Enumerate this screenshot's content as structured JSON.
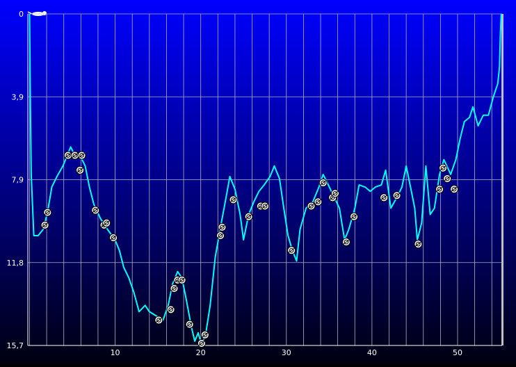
{
  "chart_data": {
    "type": "line",
    "y_inverted": true,
    "grid": true,
    "color": "#00ffff",
    "xlim": [
      -0.2,
      55.2
    ],
    "ylim": [
      0,
      15.7
    ],
    "xticks": [
      10,
      20,
      30,
      40,
      50
    ],
    "xgrid": [
      0,
      2,
      4,
      6,
      8,
      10,
      12,
      14,
      16,
      18,
      20,
      22,
      24,
      26,
      28,
      30,
      32,
      34,
      36,
      38,
      40,
      42,
      44,
      46,
      48,
      50,
      52,
      54
    ],
    "yticks": [
      0,
      {
        "value": 3.925,
        "label": "3,9"
      },
      {
        "value": 7.85,
        "label": "7,9"
      },
      {
        "value": 11.775,
        "label": "11,8"
      },
      {
        "value": 15.7,
        "label": "15,7"
      }
    ],
    "x": [
      0,
      0.1,
      0.2,
      0.5,
      1.0,
      1.6,
      2.1,
      2.6,
      3.2,
      3.9,
      4.5,
      4.8,
      5.3,
      5.9,
      6.5,
      7.0,
      7.5,
      8.3,
      9.1,
      10.0,
      10.5,
      11.0,
      11.6,
      12.2,
      12.8,
      13.5,
      14.0,
      14.8,
      15.6,
      16.2,
      16.7,
      17.3,
      17.8,
      18.3,
      18.9,
      19.3,
      19.7,
      20.1,
      20.6,
      21.1,
      21.7,
      22.4,
      23.0,
      23.4,
      24.0,
      24.6,
      25.0,
      25.6,
      26.2,
      26.8,
      27.4,
      28.1,
      28.6,
      29.2,
      29.7,
      30.2,
      30.7,
      31.2,
      31.6,
      32.3,
      33.1,
      33.8,
      34.3,
      34.9,
      35.5,
      36.2,
      36.8,
      37.3,
      38.0,
      38.5,
      39.2,
      39.8,
      40.4,
      41.1,
      41.6,
      42.2,
      42.9,
      43.5,
      44.0,
      44.5,
      45.0,
      45.3,
      45.8,
      46.3,
      46.8,
      47.3,
      47.9,
      48.4,
      49.2,
      49.8,
      50.3,
      50.8,
      51.4,
      51.8,
      52.4,
      53.0,
      53.6,
      54.2,
      54.7,
      54.9,
      55.0,
      55.1
    ],
    "values": [
      0,
      4.3,
      7.6,
      10.5,
      10.5,
      10.2,
      9.4,
      8.2,
      7.7,
      7.2,
      6.6,
      6.3,
      6.7,
      6.7,
      7.2,
      8.2,
      9.0,
      9.7,
      10.2,
      10.7,
      11.2,
      12.0,
      12.5,
      13.2,
      14.1,
      13.8,
      14.1,
      14.3,
      14.5,
      13.8,
      12.8,
      12.2,
      12.5,
      13.5,
      14.8,
      15.5,
      15.1,
      15.7,
      15.1,
      13.8,
      11.5,
      9.9,
      8.6,
      7.7,
      8.3,
      9.5,
      10.7,
      9.5,
      8.9,
      8.4,
      8.1,
      7.7,
      7.2,
      7.8,
      9.2,
      10.5,
      11.2,
      11.7,
      10.2,
      9.2,
      8.9,
      8.2,
      7.6,
      8.1,
      8.6,
      9.2,
      10.7,
      10.2,
      9.2,
      8.1,
      8.2,
      8.4,
      8.2,
      8.1,
      7.4,
      9.2,
      8.7,
      8.2,
      7.2,
      8.2,
      9.2,
      10.7,
      9.9,
      7.2,
      9.5,
      9.2,
      7.6,
      6.9,
      7.6,
      6.9,
      5.9,
      5.1,
      4.9,
      4.4,
      5.3,
      4.8,
      4.8,
      3.9,
      3.3,
      2.5,
      1.0,
      0
    ],
    "events": {
      "x": [
        1.8,
        2.1,
        4.5,
        5.3,
        6.1,
        5.9,
        7.7,
        8.7,
        9.0,
        9.8,
        15.1,
        16.5,
        16.9,
        17.3,
        17.8,
        18.7,
        20.1,
        20.5,
        22.3,
        22.5,
        23.8,
        25.6,
        27.0,
        27.5,
        30.6,
        32.9,
        33.7,
        34.3,
        35.4,
        35.7,
        37.0,
        37.9,
        41.4,
        42.9,
        45.4,
        47.9,
        48.3,
        48.8,
        49.6
      ],
      "values": [
        10.0,
        9.4,
        6.7,
        6.7,
        6.7,
        7.4,
        9.3,
        10.0,
        9.9,
        10.6,
        14.5,
        14.0,
        13.0,
        12.6,
        12.6,
        14.7,
        15.6,
        15.2,
        10.5,
        10.1,
        8.8,
        9.6,
        9.1,
        9.1,
        11.2,
        9.1,
        8.9,
        8.0,
        8.7,
        8.5,
        10.8,
        9.6,
        8.7,
        8.6,
        10.9,
        8.3,
        7.3,
        7.8,
        8.3
      ]
    }
  }
}
